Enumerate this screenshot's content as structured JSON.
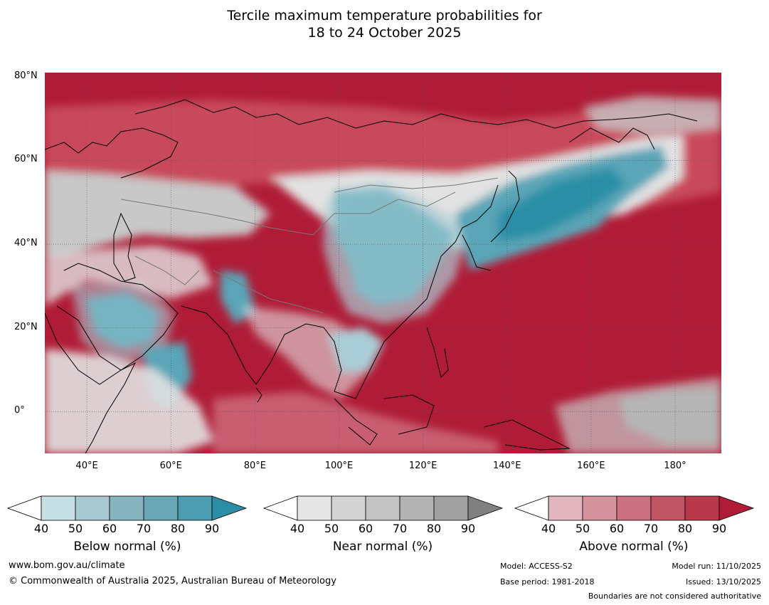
{
  "title": {
    "line1": "Tercile maximum temperature probabilities for",
    "line2": "18 to 24 October 2025"
  },
  "map": {
    "lat_labels": [
      "80°N",
      "60°N",
      "40°N",
      "20°N",
      "0°"
    ],
    "lon_labels": [
      "40°E",
      "60°E",
      "80°E",
      "100°E",
      "120°E",
      "140°E",
      "160°E",
      "180°"
    ],
    "lat_values": [
      80,
      60,
      40,
      20,
      0
    ],
    "lon_values": [
      40,
      60,
      80,
      100,
      120,
      140,
      160,
      180
    ],
    "extent": {
      "lon_min": 30,
      "lon_max": 191,
      "lat_min": -10,
      "lat_max": 81
    }
  },
  "colorbars": [
    {
      "id": "below",
      "title": "Below normal (%)",
      "ticks": [
        "40",
        "50",
        "60",
        "70",
        "80",
        "90"
      ],
      "colors": [
        "#c7e0e6",
        "#a7c8d0",
        "#88b4c0",
        "#69a7b4",
        "#4b9daf",
        "#2c8ea6"
      ]
    },
    {
      "id": "near",
      "title": "Near normal (%)",
      "ticks": [
        "40",
        "50",
        "60",
        "70",
        "80",
        "90"
      ],
      "colors": [
        "#e6e6e6",
        "#d3d3d3",
        "#c3c3c3",
        "#b3b3b3",
        "#a0a0a0",
        "#808080"
      ]
    },
    {
      "id": "above",
      "title": "Above normal (%)",
      "ticks": [
        "40",
        "50",
        "60",
        "70",
        "80",
        "90"
      ],
      "colors": [
        "#e0b5bd",
        "#d5939e",
        "#ca717f",
        "#c05565",
        "#b8384c",
        "#b01c37"
      ]
    }
  ],
  "footer": {
    "website": "www.bom.gov.au/climate",
    "copyright": "© Commonwealth of Australia 2025, Australian Bureau of Meteorology",
    "model": "Model: ACCESS-S2",
    "base_period": "Base period: 1981-2018",
    "model_run": "Model run: 11/10/2025",
    "issued": "Issued: 13/10/2025",
    "disclaimer": "Boundaries are not considered authoritative"
  },
  "colors": {
    "above_high": "#b01c37",
    "above_mid": "#c94a5c",
    "above_low": "#d98a96",
    "near_light": "#e2e2e2",
    "near_mid": "#c8c8c8",
    "near_dark": "#8a8a8a",
    "below_light": "#a9cdd6",
    "below_mid": "#5aa5b7",
    "below_dark": "#2b8fa6"
  }
}
